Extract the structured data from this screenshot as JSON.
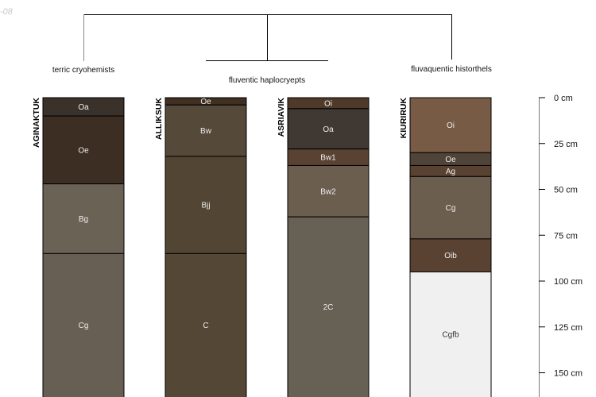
{
  "corner_text": "-08",
  "dendrogram": {
    "groups": [
      {
        "label": "terric cryohemists"
      },
      {
        "label": "fluventic haplocryepts"
      },
      {
        "label": "fluvaquentic historthels"
      }
    ]
  },
  "depth_axis": {
    "unit": "cm",
    "ticks": [
      0,
      25,
      50,
      75,
      100,
      125,
      150
    ],
    "tick_labels": [
      "0 cm",
      "25 cm",
      "50 cm",
      "75 cm",
      "100 cm",
      "125 cm",
      "150 cm"
    ]
  },
  "profiles": [
    {
      "name": "AGINAKTUK",
      "horizons": [
        {
          "name": "Oa",
          "top": 0,
          "bottom": 10,
          "color": "#3a312b"
        },
        {
          "name": "Oe",
          "top": 10,
          "bottom": 47,
          "color": "#3c2e22"
        },
        {
          "name": "Bg",
          "top": 47,
          "bottom": 85,
          "color": "#6b6256"
        },
        {
          "name": "Cg",
          "top": 85,
          "bottom": 170,
          "color": "#675f54"
        }
      ]
    },
    {
      "name": "ALLIKSUK",
      "horizons": [
        {
          "name": "Oe",
          "top": 0,
          "bottom": 4,
          "color": "#3f3022"
        },
        {
          "name": "Bw",
          "top": 4,
          "bottom": 32,
          "color": "#55493a"
        },
        {
          "name": "Bjj",
          "top": 32,
          "bottom": 85,
          "color": "#524534"
        },
        {
          "name": "C",
          "top": 85,
          "bottom": 170,
          "color": "#544735"
        }
      ]
    },
    {
      "name": "ASRIAVIK",
      "horizons": [
        {
          "name": "Oi",
          "top": 0,
          "bottom": 6,
          "color": "#4f3a2a"
        },
        {
          "name": "Oa",
          "top": 6,
          "bottom": 28,
          "color": "#403832"
        },
        {
          "name": "Bw1",
          "top": 28,
          "bottom": 37,
          "color": "#5a4232"
        },
        {
          "name": "Bw2",
          "top": 37,
          "bottom": 65,
          "color": "#6c5e4f"
        },
        {
          "name": "2C",
          "top": 65,
          "bottom": 170,
          "color": "#666055"
        }
      ]
    },
    {
      "name": "KIURIRUK",
      "horizons": [
        {
          "name": "Oi",
          "top": 0,
          "bottom": 30,
          "color": "#775b45"
        },
        {
          "name": "Oe",
          "top": 30,
          "bottom": 37,
          "color": "#504338"
        },
        {
          "name": "Ag",
          "top": 37,
          "bottom": 43,
          "color": "#5a4232"
        },
        {
          "name": "Cg",
          "top": 43,
          "bottom": 77,
          "color": "#6c5e4f"
        },
        {
          "name": "Oib",
          "top": 77,
          "bottom": 95,
          "color": "#5a4232"
        },
        {
          "name": "Cgfb",
          "top": 95,
          "bottom": 170,
          "color": "#f0f0f0"
        }
      ]
    }
  ]
}
